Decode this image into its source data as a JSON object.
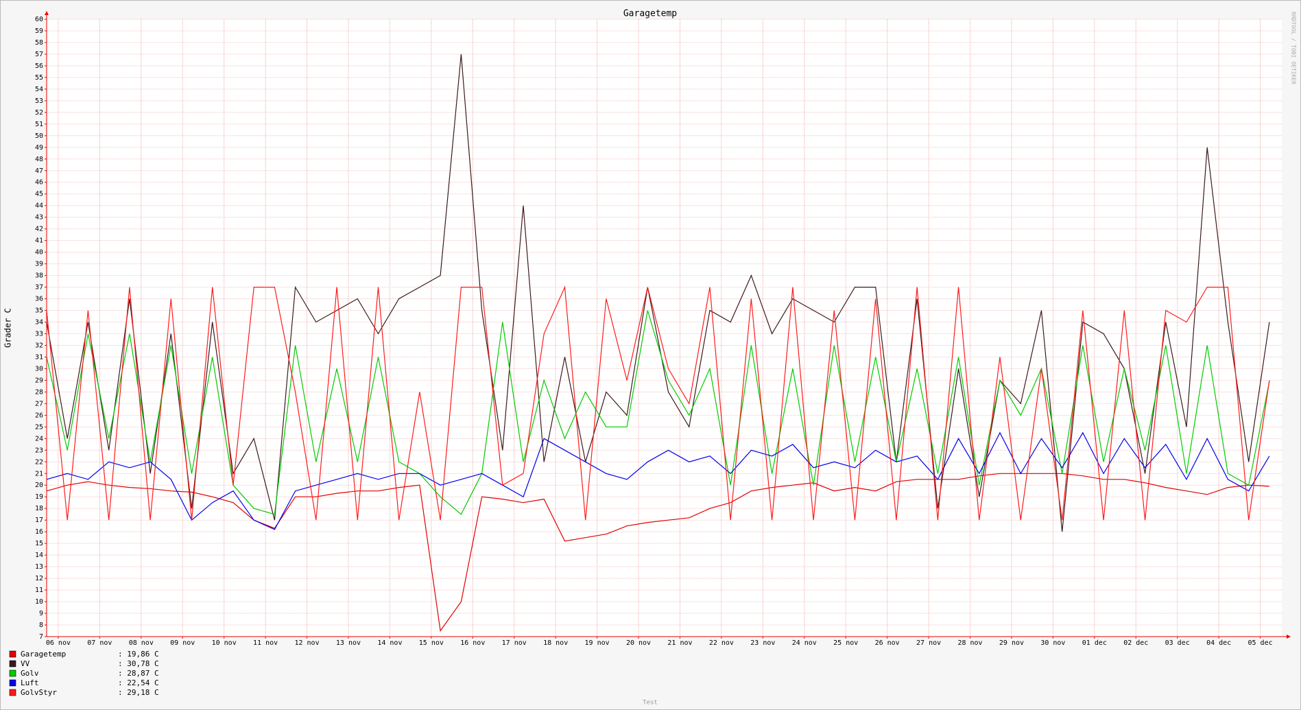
{
  "chart_data": {
    "type": "line",
    "title": "Garagetemp",
    "ylabel": "Grader C",
    "footer": "Test",
    "watermark": "RRDTOOL / TOBI OETIKER",
    "x": [
      0,
      0.5,
      1,
      1.5,
      2,
      2.5,
      3,
      3.5,
      4,
      4.5,
      5,
      5.5,
      6,
      6.5,
      7,
      7.5,
      8,
      8.5,
      9,
      9.5,
      10,
      10.5,
      11,
      11.5,
      12,
      12.5,
      13,
      13.5,
      14,
      14.5,
      15,
      15.5,
      16,
      16.5,
      17,
      17.5,
      18,
      18.5,
      19,
      19.5,
      20,
      20.5,
      21,
      21.5,
      22,
      22.5,
      23,
      23.5,
      24,
      24.5,
      25,
      25.5,
      26,
      26.5,
      27,
      27.5,
      28,
      28.5,
      29,
      29.5
    ],
    "xlim": [
      0,
      29.8
    ],
    "xticks": [
      {
        "value": 0.28,
        "label": "06 nov"
      },
      {
        "value": 1.28,
        "label": "07 nov"
      },
      {
        "value": 2.28,
        "label": "08 nov"
      },
      {
        "value": 3.28,
        "label": "09 nov"
      },
      {
        "value": 4.28,
        "label": "10 nov"
      },
      {
        "value": 5.28,
        "label": "11 nov"
      },
      {
        "value": 6.28,
        "label": "12 nov"
      },
      {
        "value": 7.28,
        "label": "13 nov"
      },
      {
        "value": 8.28,
        "label": "14 nov"
      },
      {
        "value": 9.28,
        "label": "15 nov"
      },
      {
        "value": 10.28,
        "label": "16 nov"
      },
      {
        "value": 11.28,
        "label": "17 nov"
      },
      {
        "value": 12.28,
        "label": "18 nov"
      },
      {
        "value": 13.28,
        "label": "19 nov"
      },
      {
        "value": 14.28,
        "label": "20 nov"
      },
      {
        "value": 15.28,
        "label": "21 nov"
      },
      {
        "value": 16.28,
        "label": "22 nov"
      },
      {
        "value": 17.28,
        "label": "23 nov"
      },
      {
        "value": 18.28,
        "label": "24 nov"
      },
      {
        "value": 19.28,
        "label": "25 nov"
      },
      {
        "value": 20.28,
        "label": "26 nov"
      },
      {
        "value": 21.28,
        "label": "27 nov"
      },
      {
        "value": 22.28,
        "label": "28 nov"
      },
      {
        "value": 23.28,
        "label": "29 nov"
      },
      {
        "value": 24.28,
        "label": "30 nov"
      },
      {
        "value": 25.28,
        "label": "01 dec"
      },
      {
        "value": 26.28,
        "label": "02 dec"
      },
      {
        "value": 27.28,
        "label": "03 dec"
      },
      {
        "value": 28.28,
        "label": "04 dec"
      },
      {
        "value": 29.28,
        "label": "05 dec"
      }
    ],
    "ylim": [
      7,
      60
    ],
    "yticks": [
      7,
      8,
      9,
      10,
      11,
      12,
      13,
      14,
      15,
      16,
      17,
      18,
      19,
      20,
      21,
      22,
      23,
      24,
      25,
      26,
      27,
      28,
      29,
      30,
      31,
      32,
      33,
      34,
      35,
      36,
      37,
      38,
      39,
      40,
      41,
      42,
      43,
      44,
      45,
      46,
      47,
      48,
      49,
      50,
      51,
      52,
      53,
      54,
      55,
      56,
      57,
      58,
      59,
      60
    ],
    "grid": true,
    "series": [
      {
        "name": "Garagetemp",
        "color": "#e00000",
        "legend_value": ": 19,86 C",
        "values": [
          19.5,
          20,
          20.3,
          20,
          19.8,
          19.7,
          19.5,
          19.4,
          19,
          18.5,
          17,
          16.3,
          19,
          19,
          19.3,
          19.5,
          19.5,
          19.8,
          20,
          7.5,
          10,
          19,
          18.8,
          18.5,
          18.8,
          15.2,
          15.5,
          15.8,
          16.5,
          16.8,
          17,
          17.2,
          18,
          18.5,
          19.5,
          19.8,
          20,
          20.2,
          19.5,
          19.8,
          19.5,
          20.3,
          20.5,
          20.5,
          20.5,
          20.8,
          21,
          21,
          21,
          21,
          20.8,
          20.5,
          20.5,
          20.2,
          19.8,
          19.5,
          19.2,
          19.8,
          20,
          19.9
        ]
      },
      {
        "name": "VV",
        "color": "#3a1a1a",
        "legend_value": ": 30,78 C",
        "values": [
          34,
          24,
          34,
          23,
          36,
          21,
          33,
          18,
          34,
          21,
          24,
          17,
          37,
          34,
          35,
          36,
          33,
          36,
          37,
          38,
          57,
          35,
          23,
          44,
          22,
          31,
          22,
          28,
          26,
          37,
          28,
          25,
          35,
          34,
          38,
          33,
          36,
          35,
          34,
          37,
          37,
          22,
          36,
          18,
          30,
          19,
          29,
          27,
          35,
          16,
          34,
          33,
          30,
          21,
          34,
          25,
          49,
          34,
          22,
          34
        ]
      },
      {
        "name": "Golv",
        "color": "#00cc00",
        "legend_value": ": 28,87 C",
        "values": [
          31,
          23,
          33,
          24,
          33,
          22,
          32,
          21,
          31,
          20,
          18,
          17.5,
          32,
          22,
          30,
          22,
          31,
          22,
          21,
          19,
          17.5,
          21,
          34,
          22,
          29,
          24,
          28,
          25,
          25,
          35,
          29,
          26,
          30,
          20,
          32,
          21,
          30,
          20,
          32,
          22,
          31,
          22,
          30,
          21,
          31,
          20,
          29,
          26,
          30,
          21,
          32,
          22,
          30,
          23,
          32,
          21,
          32,
          21,
          20,
          28.9
        ]
      },
      {
        "name": "Luft",
        "color": "#0000ee",
        "legend_value": ": 22,54 C",
        "values": [
          20.5,
          21,
          20.5,
          22,
          21.5,
          22,
          20.5,
          17,
          18.5,
          19.5,
          17,
          16.2,
          19.5,
          20,
          20.5,
          21,
          20.5,
          21,
          21,
          20,
          20.5,
          21,
          20,
          19,
          24,
          23,
          22,
          21,
          20.5,
          22,
          23,
          22,
          22.5,
          21,
          23,
          22.5,
          23.5,
          21.5,
          22,
          21.5,
          23,
          22,
          22.5,
          20.5,
          24,
          21,
          24.5,
          21,
          24,
          21.5,
          24.5,
          21,
          24,
          21.5,
          23.5,
          20.5,
          24,
          20.5,
          19.5,
          22.5
        ]
      },
      {
        "name": "GolvStyr",
        "color": "#ff1a1a",
        "legend_value": ": 29,18 C",
        "values": [
          35,
          17,
          35,
          17,
          37,
          17,
          36,
          17,
          37,
          20,
          37,
          37,
          28,
          17,
          37,
          17,
          37,
          17,
          28,
          17,
          37,
          37,
          20,
          21,
          33,
          37,
          17,
          36,
          29,
          37,
          30,
          27,
          37,
          17,
          36,
          17,
          37,
          17,
          35,
          17,
          36,
          17,
          37,
          17,
          37,
          17,
          31,
          17,
          30,
          17,
          35,
          17,
          35,
          17,
          35,
          34,
          37,
          37,
          17,
          29
        ]
      }
    ]
  }
}
